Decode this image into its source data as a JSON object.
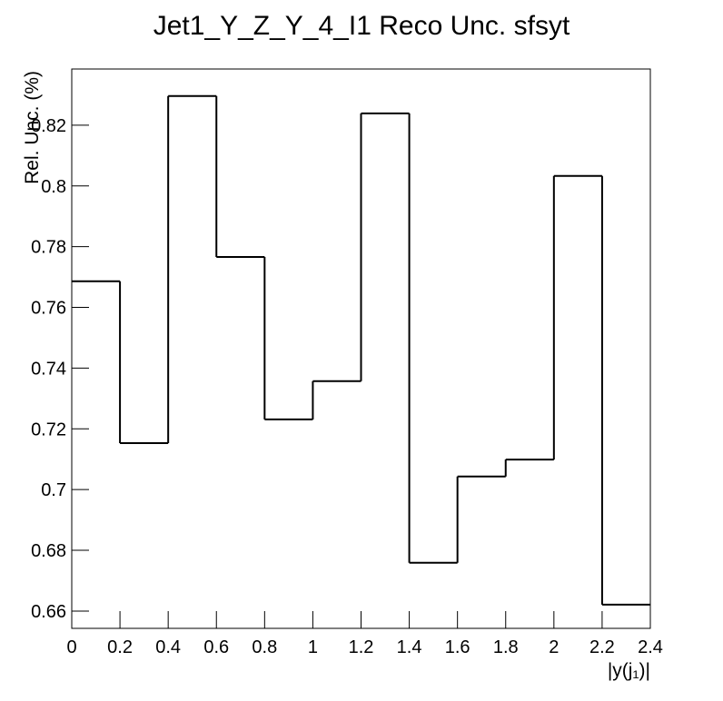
{
  "chart_data": {
    "type": "histogram",
    "title": "Jet1_Y_Z_Y_4_I1 Reco Unc. sfsyt",
    "x_label": "|y(j₁)|",
    "y_label": "Rel. Unc. (%)",
    "bins": [
      0,
      0.2,
      0.4,
      0.6,
      0.8,
      1,
      1.2,
      1.4,
      1.6,
      1.8,
      2,
      2.2,
      2.4
    ],
    "values": [
      0.7686,
      0.7153,
      0.8296,
      0.7766,
      0.7231,
      0.7357,
      0.8239,
      0.6759,
      0.7043,
      0.7099,
      0.8033,
      0.6621
    ],
    "color": "#000000",
    "xlim": [
      0,
      2.4
    ],
    "xticks": [
      0,
      0.2,
      0.4,
      0.6,
      0.8,
      1,
      1.2,
      1.4,
      1.6,
      1.8,
      2,
      2.2,
      2.4
    ],
    "ylim": [
      0.6543,
      0.8385
    ],
    "yticks": [
      0.66,
      0.68,
      0.7,
      0.72,
      0.74,
      0.76,
      0.78,
      0.8,
      0.82
    ]
  }
}
